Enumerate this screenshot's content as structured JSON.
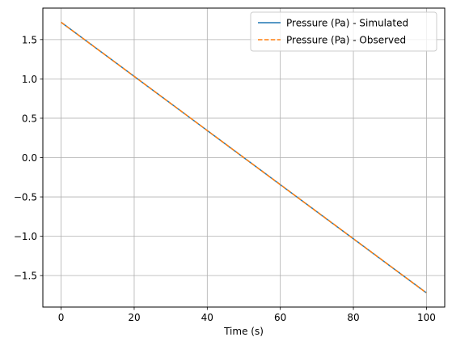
{
  "chart_data": {
    "type": "line",
    "title": "",
    "xlabel": "Time (s)",
    "ylabel": "",
    "xlim": [
      -5,
      105
    ],
    "ylim": [
      -1.9,
      1.9
    ],
    "grid": true,
    "legend_position": "top-right",
    "x_ticks": [
      0,
      20,
      40,
      60,
      80,
      100
    ],
    "x_tick_labels": [
      "0",
      "20",
      "40",
      "60",
      "80",
      "100"
    ],
    "y_ticks": [
      -1.5,
      -1.0,
      -0.5,
      0.0,
      0.5,
      1.0,
      1.5
    ],
    "y_tick_labels": [
      "−1.5",
      "−1.0",
      "−0.5",
      "0.0",
      "0.5",
      "1.0",
      "1.5"
    ],
    "series": [
      {
        "name": "Pressure (Pa) - Simulated",
        "style": "solid",
        "color": "#1f77b4",
        "x": [
          0,
          100
        ],
        "y": [
          1.72,
          -1.72
        ]
      },
      {
        "name": "Pressure (Pa) - Observed",
        "style": "dashed",
        "color": "#ff7f0e",
        "x": [
          0,
          100
        ],
        "y": [
          1.72,
          -1.72
        ]
      }
    ]
  }
}
